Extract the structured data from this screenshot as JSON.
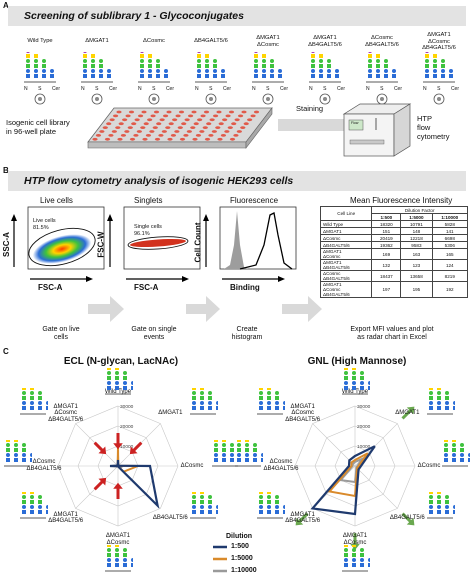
{
  "panel_a": {
    "letter": "A",
    "title": "Screening of sublibrary 1 - Glycoconjugates",
    "glyco_columns": [
      [
        "Wild Type"
      ],
      [
        "ΔMGAT1"
      ],
      [
        "ΔCosmc"
      ],
      [
        "ΔB4GALT5/6"
      ],
      [
        "ΔMGAT1",
        "ΔCosmc"
      ],
      [
        "ΔMGAT1",
        "ΔB4GALT5/6"
      ],
      [
        "ΔCosmc",
        "ΔB4GALT5/6"
      ],
      [
        "ΔMGAT1",
        "ΔCosmc",
        "ΔB4GALT5/6"
      ]
    ],
    "nsc": [
      "N",
      "S",
      "Cer"
    ],
    "plate_label": [
      "Isogenic cell library",
      "in 96-well plate"
    ],
    "staining_label": "Staining",
    "htp_label": [
      "HTP",
      "flow",
      "cytometry"
    ],
    "machine_text": "Flow"
  },
  "panel_b": {
    "letter": "B",
    "title": "HTP flow cytometry analysis of isogenic HEK293 cells",
    "plot_titles": [
      "Live cells",
      "Singlets",
      "Fluorescence",
      "Mean Fluorescence Intensity"
    ],
    "live_axes": {
      "y": "SSC-A",
      "x": "FSC-A"
    },
    "live_gate": [
      "Live cells",
      "81.5%"
    ],
    "singlet_axes": {
      "y": "FSC-W",
      "x": "FSC-A"
    },
    "singlet_gate": [
      "Single cells",
      "96.1%"
    ],
    "hist_axes": {
      "y": "Cell Count",
      "x": "Binding"
    },
    "table": {
      "col_header": "Cell Line",
      "factor_header": "Dilution Factor",
      "dilutions": [
        "1:500",
        "1:5000",
        "1:10000"
      ],
      "rows": [
        {
          "name": [
            "Wild Type"
          ],
          "values": [
            "18320",
            "10791",
            "5828"
          ]
        },
        {
          "name": [
            "ΔMGAT1"
          ],
          "values": [
            "151",
            "148",
            "141"
          ]
        },
        {
          "name": [
            "ΔCosmc"
          ],
          "values": [
            "20419",
            "12218",
            "6698"
          ]
        },
        {
          "name": [
            "ΔB4GALT5/6"
          ],
          "values": [
            "19362",
            "9583",
            "5306"
          ]
        },
        {
          "name": [
            "ΔMGAT1",
            "ΔCosmc"
          ],
          "values": [
            "169",
            "163",
            "165"
          ]
        },
        {
          "name": [
            "ΔMGAT1",
            "ΔB4GALT5/6"
          ],
          "values": [
            "132",
            "123",
            "124"
          ]
        },
        {
          "name": [
            "ΔCosmc",
            "ΔB4GALT5/6"
          ],
          "values": [
            "18437",
            "13658",
            "8219"
          ]
        },
        {
          "name": [
            "ΔMGAT1",
            "ΔCosmc",
            "ΔB4GALT5/6"
          ],
          "values": [
            "197",
            "195",
            "192"
          ]
        }
      ]
    },
    "steps": [
      [
        "Gate on live",
        "cells"
      ],
      [
        "Gate on single",
        "events"
      ],
      [
        "Create",
        "histogram"
      ],
      [
        "Export MFI values and plot",
        "as radar chart in Excel"
      ]
    ]
  },
  "panel_c": {
    "letter": "C",
    "legend": {
      "title": "Dilution",
      "items": [
        "1:500",
        "1:5000",
        "1:10000"
      ]
    },
    "colors": {
      "d500": "#1f3a6e",
      "d5000": "#d98a2b",
      "d10000": "#9a9a9a",
      "red_arrow": "#cc2222",
      "green_arrow": "#6aa84f"
    }
  },
  "chart_data": [
    {
      "type": "radar",
      "title": "ECL (N-glycan, LacNAc)",
      "categories": [
        [
          "Wild Type"
        ],
        [
          "ΔMGAT1"
        ],
        [
          "ΔCosmc"
        ],
        [
          "ΔB4GALT5/6"
        ],
        [
          "ΔMGAT1",
          "ΔCosmc"
        ],
        [
          "ΔMGAT1",
          "ΔB4GALT5/6"
        ],
        [
          "ΔCosmc",
          "ΔB4GALT5/6"
        ],
        [
          "ΔMGAT1",
          "ΔCosmc",
          "ΔB4GALT5/6"
        ]
      ],
      "ticks": [
        "0",
        "10000",
        "20000",
        "30000"
      ],
      "rmax": 30000,
      "series": [
        {
          "name": "1:500",
          "values": [
            3000,
            200,
            16000,
            28000,
            200,
            200,
            4000,
            250
          ]
        },
        {
          "name": "1:5000",
          "values": [
            10000,
            150,
            10000,
            4000,
            150,
            150,
            2500,
            200
          ]
        },
        {
          "name": "1:10000",
          "values": [
            5500,
            140,
            2000,
            1500,
            150,
            140,
            1200,
            190
          ]
        }
      ],
      "arrows": [
        {
          "axis": 5,
          "direction": "in"
        },
        {
          "axis": 7,
          "direction": "in"
        },
        {
          "axis": 4,
          "direction": "in"
        },
        {
          "axis": 1,
          "direction": "in"
        },
        {
          "axis": 0,
          "direction": "in"
        }
      ]
    },
    {
      "type": "radar",
      "title": "GNL (High Mannose)",
      "categories": [
        [
          "Wild Type"
        ],
        [
          "ΔMGAT1"
        ],
        [
          "ΔCosmc"
        ],
        [
          "ΔB4GALT5/6"
        ],
        [
          "ΔMGAT1",
          "ΔCosmc"
        ],
        [
          "ΔMGAT1",
          "ΔB4GALT5/6"
        ],
        [
          "ΔCosmc",
          "ΔB4GALT5/6"
        ],
        [
          "ΔMGAT1",
          "ΔCosmc",
          "ΔB4GALT5/6"
        ]
      ],
      "ticks": [
        "0",
        "10000",
        "20000",
        "30000"
      ],
      "rmax": 30000,
      "series": [
        {
          "name": "1:500",
          "values": [
            5000,
            14000,
            3000,
            2500,
            24000,
            30000,
            3000,
            4000
          ]
        },
        {
          "name": "1:5000",
          "values": [
            3000,
            9000,
            1800,
            1500,
            15000,
            18000,
            1800,
            2500
          ]
        },
        {
          "name": "1:10000",
          "values": [
            2000,
            5000,
            1200,
            1000,
            8000,
            10000,
            1200,
            1500
          ]
        }
      ],
      "arrows": [
        {
          "axis": 1,
          "direction": "out"
        },
        {
          "axis": 3,
          "direction": "out"
        },
        {
          "axis": 4,
          "direction": "out"
        },
        {
          "axis": 5,
          "direction": "out"
        }
      ]
    }
  ]
}
